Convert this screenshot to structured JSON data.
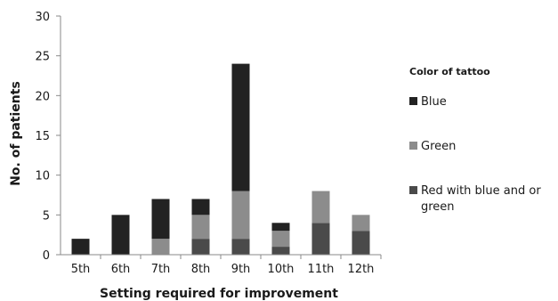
{
  "chart_data": {
    "type": "bar",
    "stacked": true,
    "categories": [
      "5th",
      "6th",
      "7th",
      "8th",
      "9th",
      "10th",
      "11th",
      "12th"
    ],
    "series": [
      {
        "name": "Red with blue and or green",
        "color": "#4a4a4a",
        "values": [
          0,
          0,
          0,
          2,
          2,
          1,
          4,
          3
        ]
      },
      {
        "name": "Green",
        "color": "#8c8c8c",
        "values": [
          0,
          0,
          2,
          3,
          6,
          2,
          4,
          2
        ]
      },
      {
        "name": "Blue",
        "color": "#222222",
        "values": [
          2,
          5,
          5,
          2,
          16,
          1,
          0,
          0
        ]
      }
    ],
    "title": "",
    "xlabel": "Setting required for improvement",
    "ylabel": "No. of patients",
    "ylim": [
      0,
      30
    ],
    "yticks": [
      0,
      5,
      10,
      15,
      20,
      25,
      30
    ],
    "grid": false,
    "legend": {
      "title": "Color of tattoo",
      "position": "right",
      "order": [
        "Blue",
        "Green",
        "Red with blue and or green"
      ]
    }
  }
}
